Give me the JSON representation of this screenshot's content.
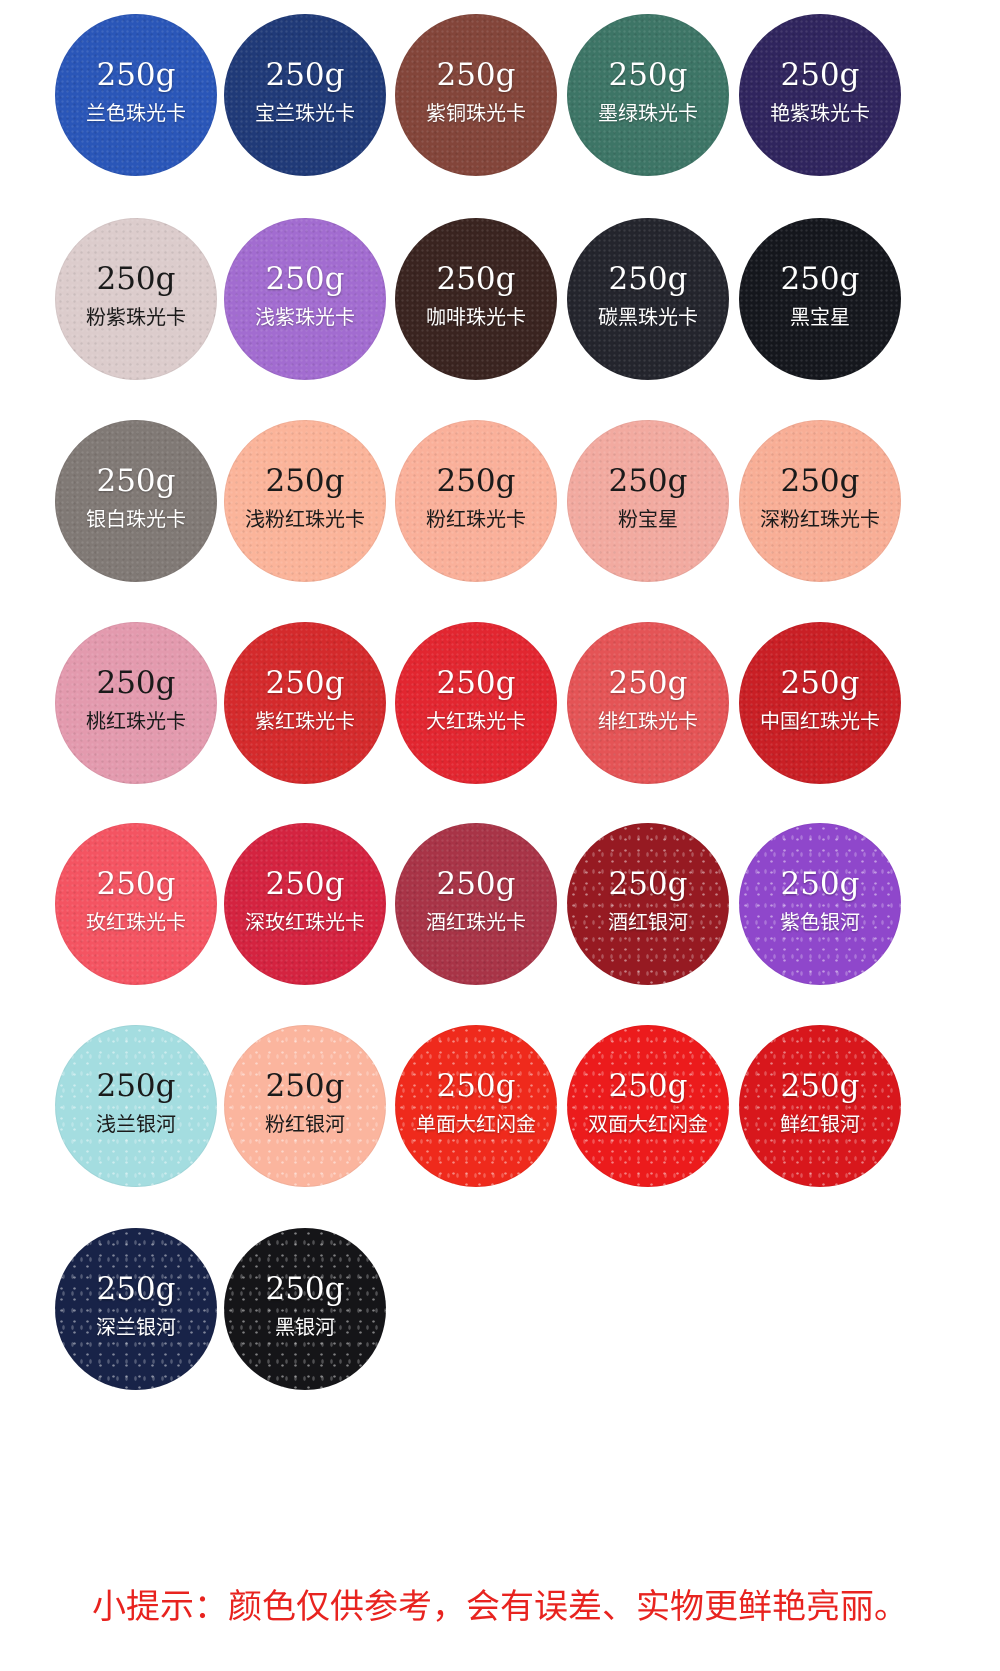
{
  "swatches": [
    {
      "weight": "250g",
      "name": "兰色珠光卡",
      "color": "#2a56b8"
    },
    {
      "weight": "250g",
      "name": "宝兰珠光卡",
      "color": "#203a78"
    },
    {
      "weight": "250g",
      "name": "紫铜珠光卡",
      "color": "#83453a"
    },
    {
      "weight": "250g",
      "name": "墨绿珠光卡",
      "color": "#3d7566"
    },
    {
      "weight": "250g",
      "name": "艳紫珠光卡",
      "color": "#30255e"
    },
    {
      "weight": "250g",
      "name": "粉紫珠光卡",
      "color": "#dccccc",
      "text": "dark"
    },
    {
      "weight": "250g",
      "name": "浅紫珠光卡",
      "color": "#a26cd0"
    },
    {
      "weight": "250g",
      "name": "咖啡珠光卡",
      "color": "#3a2420"
    },
    {
      "weight": "250g",
      "name": "碳黑珠光卡",
      "color": "#24252d"
    },
    {
      "weight": "250g",
      "name": "黑宝星",
      "color": "#15171d"
    },
    {
      "weight": "250g",
      "name": "银白珠光卡",
      "color": "#807975"
    },
    {
      "weight": "250g",
      "name": "浅粉红珠光卡",
      "color": "#fbb49a",
      "text": "dark"
    },
    {
      "weight": "250g",
      "name": "粉红珠光卡",
      "color": "#fab09a",
      "text": "dark"
    },
    {
      "weight": "250g",
      "name": "粉宝星",
      "color": "#f2aaa0",
      "text": "dark"
    },
    {
      "weight": "250g",
      "name": "深粉红珠光卡",
      "color": "#f8ae96",
      "text": "dark"
    },
    {
      "weight": "250g",
      "name": "桃红珠光卡",
      "color": "#e39aae",
      "text": "dark"
    },
    {
      "weight": "250g",
      "name": "紫红珠光卡",
      "color": "#d42a2c"
    },
    {
      "weight": "250g",
      "name": "大红珠光卡",
      "color": "#e22630"
    },
    {
      "weight": "250g",
      "name": "绯红珠光卡",
      "color": "#e45456"
    },
    {
      "weight": "250g",
      "name": "中国红珠光卡",
      "color": "#c91f25"
    },
    {
      "weight": "250g",
      "name": "玫红珠光卡",
      "color": "#f45462"
    },
    {
      "weight": "250g",
      "name": "深玫红珠光卡",
      "color": "#d42340"
    },
    {
      "weight": "250g",
      "name": "酒红珠光卡",
      "color": "#a83447"
    },
    {
      "weight": "250g",
      "name": "酒红银河",
      "color": "#961a22",
      "finish": "sparkle"
    },
    {
      "weight": "250g",
      "name": "紫色银河",
      "color": "#8f47cb",
      "finish": "sparkle"
    },
    {
      "weight": "250g",
      "name": "浅兰银河",
      "color": "#a4dde0",
      "text": "dark",
      "finish": "sparkle"
    },
    {
      "weight": "250g",
      "name": "粉红银河",
      "color": "#fbb59e",
      "text": "dark",
      "finish": "sparkle"
    },
    {
      "weight": "250g",
      "name": "单面大红闪金",
      "color": "#ef2a1c",
      "finish": "sparkle"
    },
    {
      "weight": "250g",
      "name": "双面大红闪金",
      "color": "#ec1b1c",
      "finish": "sparkle"
    },
    {
      "weight": "250g",
      "name": "鲜红银河",
      "color": "#d8171c",
      "finish": "sparkle"
    },
    {
      "weight": "250g",
      "name": "深兰银河",
      "color": "#182348",
      "finish": "sparkle"
    },
    {
      "weight": "250g",
      "name": "黑银河",
      "color": "#151518",
      "finish": "sparkle"
    }
  ],
  "footer": {
    "note": "小提示：颜色仅供参考，会有误差、实物更鲜艳亮丽。",
    "color": "#e8231f"
  }
}
